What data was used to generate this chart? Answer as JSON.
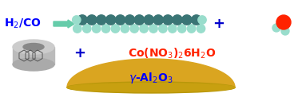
{
  "h2co_color": "#0000ff",
  "arrow_color": "#66ccaa",
  "chain_dark_color": "#3a7575",
  "chain_light_color": "#99ddcc",
  "plus_color": "#0000cc",
  "co_color": "#ff2200",
  "alumina_text_color": "#0000ff",
  "water_red_color": "#ff2200",
  "water_light_color": "#99ddcc",
  "bg_color": "#ffffff",
  "cyl_outer_color": "#cccccc",
  "cyl_body_color": "#bbbbbb",
  "cyl_inner_color": "#888888",
  "cyl_bottom_color": "#aaaaaa",
  "hex_edge_color": "#555555",
  "dome_top_color": "#daa520",
  "dome_mid_color": "#c8a010",
  "dome_base_color": "#b8970a"
}
